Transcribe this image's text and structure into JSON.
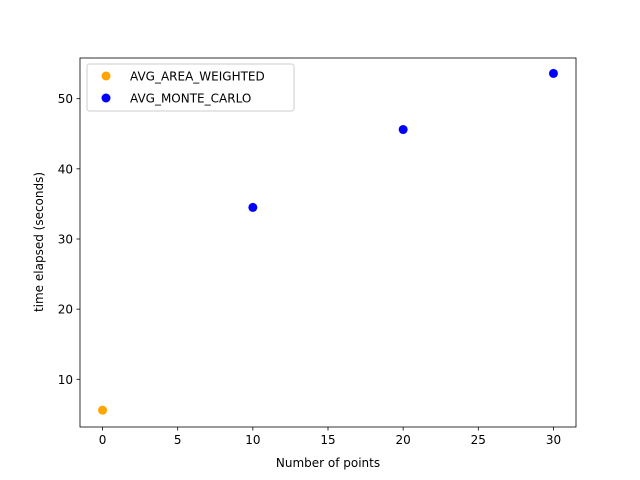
{
  "chart_data": {
    "type": "scatter",
    "title": "",
    "xlabel": "Number of points",
    "ylabel": "time elapsed (seconds)",
    "xlim": [
      -1.5,
      31.5
    ],
    "ylim": [
      3.2,
      55.8
    ],
    "xticks": [
      0,
      5,
      10,
      15,
      20,
      25,
      30
    ],
    "yticks": [
      10,
      20,
      30,
      40,
      50
    ],
    "grid": false,
    "legend_position": "top-left",
    "series": [
      {
        "name": "AVG_AREA_WEIGHTED",
        "color": "#ffa500",
        "points": [
          {
            "x": 0,
            "y": 5.6
          }
        ]
      },
      {
        "name": "AVG_MONTE_CARLO",
        "color": "#0000ff",
        "points": [
          {
            "x": 10,
            "y": 34.5
          },
          {
            "x": 20,
            "y": 45.6
          },
          {
            "x": 30,
            "y": 53.6
          }
        ]
      }
    ]
  }
}
